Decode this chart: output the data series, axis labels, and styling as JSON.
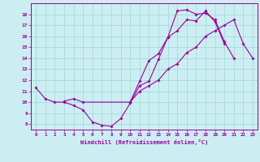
{
  "xlabel": "Windchill (Refroidissement éolien,°C)",
  "bg_color": "#cceef2",
  "grid_color": "#aadddd",
  "line_color": "#990099",
  "xlim": [
    -0.5,
    23.5
  ],
  "ylim": [
    7.5,
    19.0
  ],
  "xticks": [
    0,
    1,
    2,
    3,
    4,
    5,
    6,
    7,
    8,
    9,
    10,
    11,
    12,
    13,
    14,
    15,
    16,
    17,
    18,
    19,
    20,
    21,
    22,
    23
  ],
  "yticks": [
    8,
    9,
    10,
    11,
    12,
    13,
    14,
    15,
    16,
    17,
    18
  ],
  "curve1_x": [
    0,
    1,
    2,
    3,
    4,
    5,
    6,
    7,
    8,
    9,
    10,
    11,
    12,
    13,
    14,
    15,
    16,
    17,
    18,
    19,
    20,
    21
  ],
  "curve1_y": [
    11.3,
    10.3,
    10.0,
    10.0,
    9.7,
    9.3,
    8.2,
    7.9,
    7.8,
    8.5,
    9.9,
    11.5,
    11.9,
    13.9,
    15.9,
    18.3,
    18.4,
    18.0,
    18.1,
    17.5,
    15.5,
    14.0
  ],
  "curve2_x": [
    3,
    4,
    5,
    10,
    11,
    12,
    13,
    14,
    15,
    16,
    17,
    18,
    19,
    20
  ],
  "curve2_y": [
    10.1,
    10.3,
    10.0,
    10.0,
    11.9,
    13.8,
    14.4,
    15.9,
    16.5,
    17.5,
    17.4,
    18.3,
    17.3,
    15.3
  ],
  "curve3_x": [
    10,
    11,
    12,
    13,
    14,
    15,
    16,
    17,
    18,
    19,
    20,
    21,
    22,
    23
  ],
  "curve3_y": [
    10.0,
    11.0,
    11.5,
    12.0,
    13.0,
    13.5,
    14.5,
    15.0,
    16.0,
    16.5,
    17.0,
    17.5,
    15.3,
    14.0
  ]
}
